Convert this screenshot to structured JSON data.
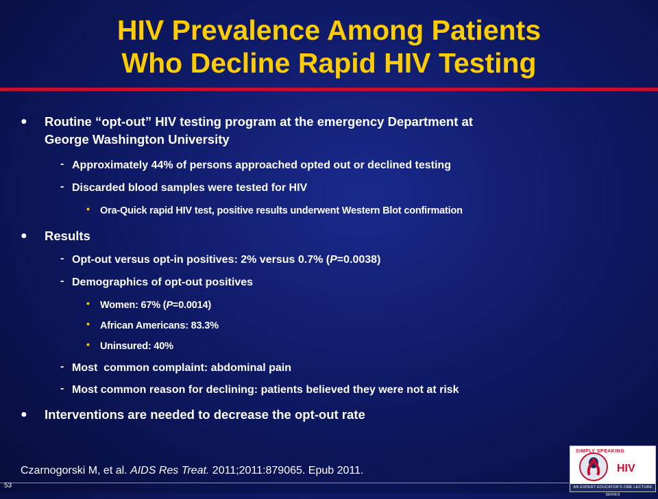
{
  "slide": {
    "title_line1": "HIV Prevalence Among Patients",
    "title_line2": "Who Decline Rapid HIV Testing",
    "number": "53"
  },
  "bullets": {
    "b1": {
      "text_line1": "Routine “opt-out” HIV testing program at the emergency Department at",
      "text_line2": "George Washington University",
      "sub1": "Approximately 44% of persons approached opted out or declined testing",
      "sub2": "Discarded blood samples were tested for HIV",
      "sub2_detail": "Ora-Quick rapid HIV test, positive results underwent Western Blot confirmation"
    },
    "b2": {
      "text": "Results",
      "sub1_pre": "Opt-out versus opt-in positives: 2% versus 0.7% (",
      "sub1_p": "P",
      "sub1_post": "=0.0038)",
      "sub2": "Demographics of opt-out positives",
      "d1_pre": "Women: 67% (",
      "d1_p": "P",
      "d1_post": "=0.0014)",
      "d2": "African Americans: 83.3%",
      "d3": "Uninsured: 40%",
      "sub3": "Most  common complaint: abdominal pain",
      "sub4": "Most common reason for declining: patients believed they were not at risk"
    },
    "b3": {
      "text": "Interventions are needed to decrease the opt-out rate"
    }
  },
  "citation": {
    "authors": "Czarnogorski M, et al. ",
    "journal": "AIDS Res Treat.",
    "details": " 2011;2011:879065. Epub 2011."
  },
  "logo": {
    "top_text": "SIMPLY SPEAKING",
    "main_text": "HIV",
    "band_text": "AN EXPERT EDUCATOR'S CME LECTURE SERIES"
  },
  "colors": {
    "title": "#ffcc00",
    "rule": "#c8102e",
    "background": "#0f1a66"
  }
}
